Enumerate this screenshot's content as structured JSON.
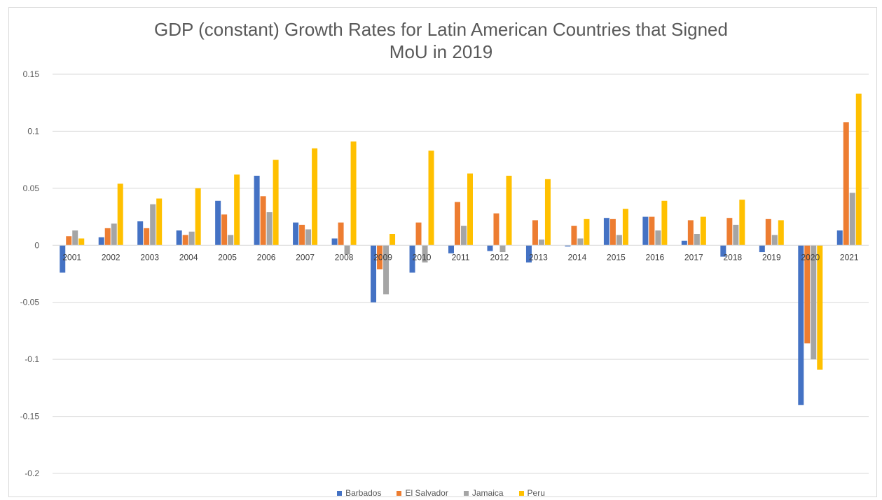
{
  "chart_data": {
    "type": "bar",
    "title_line1": "GDP (constant) Growth Rates for Latin American Countries that Signed",
    "title_line2": "MoU in 2019",
    "categories": [
      "2001",
      "2002",
      "2003",
      "2004",
      "2005",
      "2006",
      "2007",
      "2008",
      "2009",
      "2010",
      "2011",
      "2012",
      "2013",
      "2014",
      "2015",
      "2016",
      "2017",
      "2018",
      "2019",
      "2020",
      "2021"
    ],
    "y_ticks": [
      "0.15",
      "0.1",
      "0.05",
      "0",
      "-0.05",
      "-0.1",
      "-0.15",
      "-0.2"
    ],
    "ylim": [
      -0.2,
      0.15
    ],
    "grid": true,
    "legend_position": "bottom",
    "series": [
      {
        "name": "Barbados",
        "color": "#4472C4",
        "values": [
          -0.024,
          0.007,
          0.021,
          0.013,
          0.039,
          0.061,
          0.02,
          0.006,
          -0.05,
          -0.024,
          -0.007,
          -0.005,
          -0.015,
          -0.001,
          0.024,
          0.025,
          0.004,
          -0.01,
          -0.006,
          -0.14,
          0.013
        ]
      },
      {
        "name": "El Salvador",
        "color": "#ED7D31",
        "values": [
          0.008,
          0.015,
          0.015,
          0.009,
          0.027,
          0.043,
          0.018,
          0.02,
          -0.021,
          0.02,
          0.038,
          0.028,
          0.022,
          0.017,
          0.023,
          0.025,
          0.022,
          0.024,
          0.023,
          -0.086,
          0.108
        ]
      },
      {
        "name": "Jamaica",
        "color": "#A5A5A5",
        "values": [
          0.013,
          0.019,
          0.036,
          0.012,
          0.009,
          0.029,
          0.014,
          -0.008,
          -0.043,
          -0.015,
          0.017,
          -0.006,
          0.005,
          0.006,
          0.009,
          0.013,
          0.01,
          0.018,
          0.009,
          -0.1,
          0.046
        ]
      },
      {
        "name": "Peru",
        "color": "#FFC000",
        "values": [
          0.006,
          0.054,
          0.041,
          0.05,
          0.062,
          0.075,
          0.085,
          0.091,
          0.01,
          0.083,
          0.063,
          0.061,
          0.058,
          0.023,
          0.032,
          0.039,
          0.025,
          0.04,
          0.022,
          -0.109,
          0.133
        ]
      }
    ]
  }
}
